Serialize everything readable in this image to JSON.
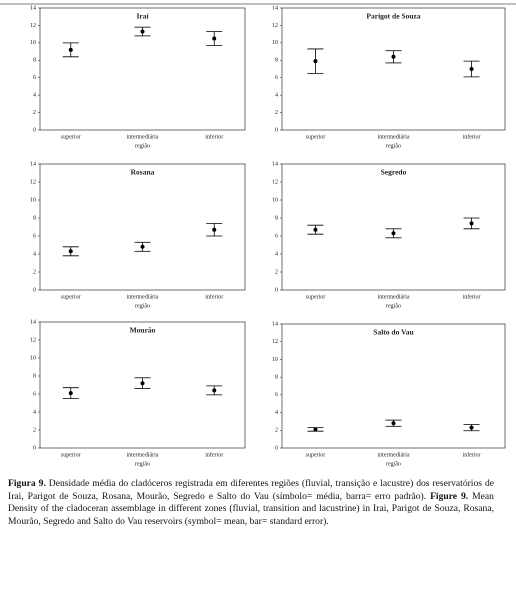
{
  "chart_data": [
    {
      "type": "errorbar",
      "title": "Iraí",
      "categories": [
        "superior",
        "intermediária",
        "inferior"
      ],
      "values": [
        9.2,
        11.3,
        10.5
      ],
      "errors": [
        0.8,
        0.5,
        0.8
      ],
      "xlabel": "região",
      "ylim": [
        0,
        14
      ],
      "yticks": [
        0,
        2,
        4,
        6,
        8,
        10,
        12,
        14
      ]
    },
    {
      "type": "errorbar",
      "title": "Parigot de Souza",
      "categories": [
        "superior",
        "intermediária",
        "inferior"
      ],
      "values": [
        7.9,
        8.4,
        7.0
      ],
      "errors": [
        1.4,
        0.7,
        0.9
      ],
      "xlabel": "região",
      "ylim": [
        0,
        14
      ],
      "yticks": [
        0,
        2,
        4,
        6,
        8,
        10,
        12,
        14
      ]
    },
    {
      "type": "errorbar",
      "title": "Rosana",
      "categories": [
        "superior",
        "intermediária",
        "inferior"
      ],
      "values": [
        4.3,
        4.8,
        6.7
      ],
      "errors": [
        0.5,
        0.5,
        0.7
      ],
      "xlabel": "região",
      "ylim": [
        0,
        14
      ],
      "yticks": [
        0,
        2,
        4,
        6,
        8,
        10,
        12,
        14
      ]
    },
    {
      "type": "errorbar",
      "title": "Segredo",
      "categories": [
        "superior",
        "intermediária",
        "inferior"
      ],
      "values": [
        6.7,
        6.3,
        7.4
      ],
      "errors": [
        0.5,
        0.5,
        0.6
      ],
      "xlabel": "região",
      "ylim": [
        0,
        14
      ],
      "yticks": [
        0,
        2,
        4,
        6,
        8,
        10,
        12,
        14
      ]
    },
    {
      "type": "errorbar",
      "title": "Mourão",
      "categories": [
        "superior",
        "intermediária",
        "inferior"
      ],
      "values": [
        6.1,
        7.2,
        6.4
      ],
      "errors": [
        0.6,
        0.6,
        0.5
      ],
      "xlabel": "região",
      "ylim": [
        0,
        14
      ],
      "yticks": [
        0,
        2,
        4,
        6,
        8,
        10,
        12,
        14
      ]
    },
    {
      "type": "errorbar",
      "title": "Salto do Vau",
      "categories": [
        "superior",
        "intermediária",
        "inferior"
      ],
      "values": [
        2.1,
        2.8,
        2.3
      ],
      "errors": [
        0.2,
        0.35,
        0.35
      ],
      "xlabel": "região",
      "ylim": [
        0,
        14
      ],
      "yticks": [
        0,
        2,
        4,
        6,
        8,
        10,
        12,
        14
      ]
    }
  ],
  "caption": {
    "pt_label": "Figura 9.",
    "pt_text": "Densidade média do cladóceros registrada em diferentes regiões (fluvial, transição e lacustre) dos reservatórios de Irai, Parigot de Souza, Rosana, Mourão, Segredo e Salto do Vau (símbolo= média, barra= erro padrão).",
    "en_label": "Figure 9.",
    "en_text": "Mean Density of the cladoceran assemblage in different zones (fluvial, transition and lacustrine) in Irai, Parigot de Souza, Rosana, Mourão, Segredo and Salto do Vau reservoirs (symbol= mean, bar= standard error)."
  }
}
